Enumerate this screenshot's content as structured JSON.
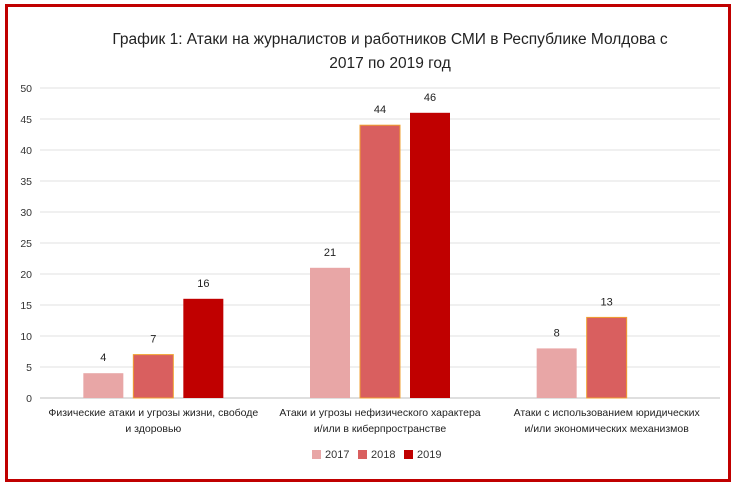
{
  "chart_data": {
    "type": "bar",
    "title_line1": "График 1: Атаки на журналистов и работников СМИ в Республике Молдова с",
    "title_line2": "2017 по 2019 год",
    "categories": [
      [
        "Физические атаки и угрозы жизни, свободе",
        "и здоровью"
      ],
      [
        "Атаки и угрозы нефизического характера",
        "и/или в киберпространстве"
      ],
      [
        "Атаки с использованием юридических",
        "и/или экономических механизмов"
      ]
    ],
    "series": [
      {
        "name": "2017",
        "values": [
          4,
          21,
          8
        ],
        "color": "#e8a6a6"
      },
      {
        "name": "2018",
        "values": [
          7,
          44,
          13
        ],
        "color": "#d95f5f",
        "stroke": "#f0a030"
      },
      {
        "name": "2019",
        "values": [
          16,
          46,
          null
        ],
        "color": "#c00000"
      }
    ],
    "ylim": [
      0,
      50
    ],
    "yticks": [
      0,
      5,
      10,
      15,
      20,
      25,
      30,
      35,
      40,
      45,
      50
    ],
    "grid": true,
    "legend": "bottom"
  }
}
